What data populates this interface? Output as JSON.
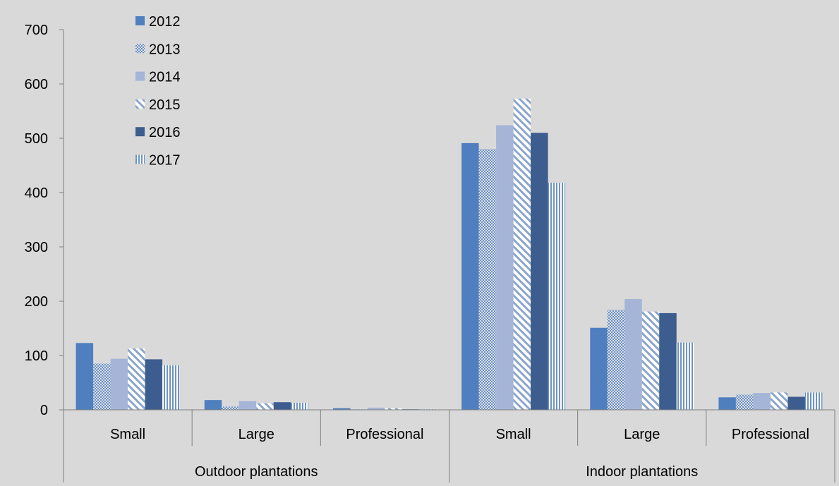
{
  "chart_data": {
    "type": "bar",
    "title": "",
    "xlabel": "",
    "ylabel": "",
    "ylim": [
      0,
      700
    ],
    "yticks": [
      0,
      100,
      200,
      300,
      400,
      500,
      600,
      700
    ],
    "grid": false,
    "legend_position": "top-left",
    "groups": [
      {
        "label": "Outdoor plantations",
        "categories": [
          "Small",
          "Large",
          "Professional"
        ]
      },
      {
        "label": "Indoor plantations",
        "categories": [
          "Small",
          "Large",
          "Professional"
        ]
      }
    ],
    "categories": [
      "Outdoor plantations - Small",
      "Outdoor plantations - Large",
      "Outdoor plantations - Professional",
      "Indoor plantations - Small",
      "Indoor plantations - Large",
      "Indoor plantations - Professional"
    ],
    "series": [
      {
        "name": "2012",
        "color": "#4f7fbf",
        "pattern": "solid",
        "values": [
          123,
          18,
          3,
          491,
          151,
          23
        ]
      },
      {
        "name": "2013",
        "color": "#a3b9dc",
        "pattern": "checker",
        "values": [
          85,
          6,
          1,
          480,
          184,
          28
        ]
      },
      {
        "name": "2014",
        "color": "#a5b5d8",
        "pattern": "solid",
        "values": [
          94,
          16,
          4,
          524,
          204,
          31
        ]
      },
      {
        "name": "2015",
        "color": "#8ba6ca",
        "pattern": "diagonal",
        "values": [
          113,
          12,
          3,
          573,
          181,
          32
        ]
      },
      {
        "name": "2016",
        "color": "#3c5d8d",
        "pattern": "solid",
        "values": [
          93,
          14,
          1,
          510,
          178,
          24
        ]
      },
      {
        "name": "2017",
        "color": "#7a9cc6",
        "pattern": "vertical",
        "values": [
          82,
          13,
          1,
          418,
          124,
          32
        ]
      }
    ]
  }
}
